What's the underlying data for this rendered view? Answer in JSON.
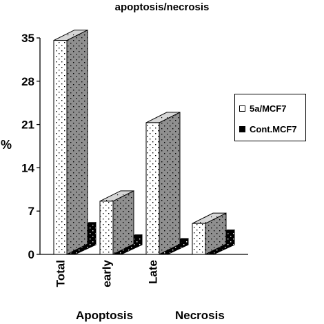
{
  "chart_data": {
    "type": "bar",
    "title": "apoptosis/necrosis",
    "ylabel": "%",
    "xlabel": "",
    "ylim": [
      0,
      35
    ],
    "yticks": [
      0,
      7,
      14,
      21,
      28,
      35
    ],
    "ytick_labels": [
      "0",
      "7",
      "14",
      "21",
      "28",
      "35"
    ],
    "categories": [
      "Total",
      "early",
      "Late",
      ""
    ],
    "series": [
      {
        "name": "5a/MCF7",
        "values": [
          34.6,
          8.6,
          21.3,
          5.0
        ],
        "color": "#ffffff"
      },
      {
        "name": "Cont.MCF7",
        "values": [
          3.6,
          1.6,
          1.0,
          2.4
        ],
        "color": "#000000"
      }
    ],
    "group_labels": [
      "Apoptosis",
      "Necrosis"
    ],
    "legend_position": "right",
    "grid": false,
    "style": "3d-column"
  }
}
